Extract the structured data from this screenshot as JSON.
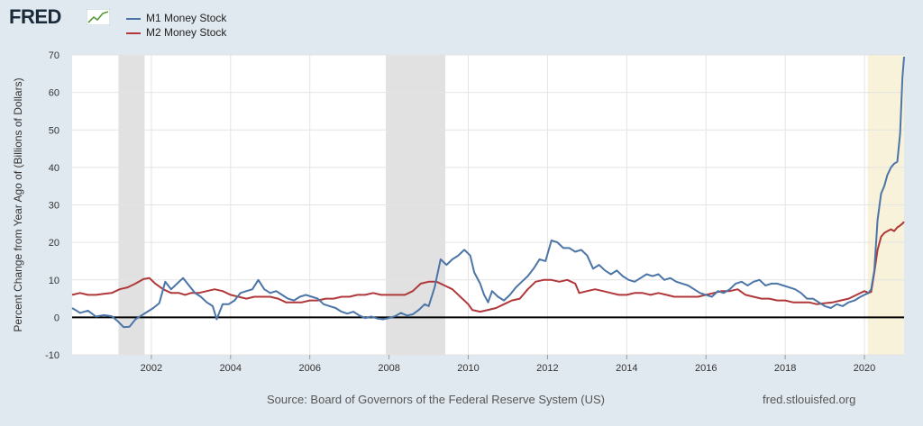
{
  "header": {
    "logo_text": "FRED",
    "logo_icon": "trend-chart-icon"
  },
  "colors": {
    "m1": "#4c75a7",
    "m2": "#b0383a",
    "recession": "#e1e1e1",
    "highlight": "#f7f2d9",
    "background": "#e1e9f0"
  },
  "footer": {
    "source": "Source: Board of Governors of the Federal Reserve System (US)",
    "url": "fred.stlouisfed.org"
  },
  "chart_data": {
    "type": "line",
    "ylabel": "Percent Change from Year Ago of (Billions of Dollars)",
    "xlim": [
      2000.0,
      2021.0
    ],
    "ylim": [
      -10,
      70
    ],
    "yticks": [
      -10,
      0,
      10,
      20,
      30,
      40,
      50,
      60,
      70
    ],
    "xticks": [
      2002,
      2004,
      2006,
      2008,
      2010,
      2012,
      2014,
      2016,
      2018,
      2020
    ],
    "grid": true,
    "legend": "top-left",
    "shaded_periods": [
      {
        "start": 2001.17,
        "end": 2001.83,
        "kind": "recession"
      },
      {
        "start": 2007.92,
        "end": 2009.42,
        "kind": "recession"
      },
      {
        "start": 2020.08,
        "end": 2021.0,
        "kind": "highlight"
      }
    ],
    "series": [
      {
        "name": "M1 Money Stock",
        "color": "#4c75a7",
        "points": [
          [
            2000.0,
            2.5
          ],
          [
            2000.2,
            1.2
          ],
          [
            2000.4,
            1.8
          ],
          [
            2000.6,
            0.2
          ],
          [
            2000.8,
            0.6
          ],
          [
            2001.0,
            0.3
          ],
          [
            2001.15,
            -1.0
          ],
          [
            2001.3,
            -2.6
          ],
          [
            2001.45,
            -2.5
          ],
          [
            2001.6,
            -0.5
          ],
          [
            2001.75,
            0.5
          ],
          [
            2001.9,
            1.5
          ],
          [
            2002.05,
            2.5
          ],
          [
            2002.2,
            3.8
          ],
          [
            2002.35,
            9.5
          ],
          [
            2002.5,
            7.5
          ],
          [
            2002.65,
            9.0
          ],
          [
            2002.8,
            10.5
          ],
          [
            2002.95,
            8.5
          ],
          [
            2003.1,
            6.5
          ],
          [
            2003.25,
            5.5
          ],
          [
            2003.4,
            4.0
          ],
          [
            2003.55,
            3.0
          ],
          [
            2003.65,
            -0.5
          ],
          [
            2003.8,
            3.5
          ],
          [
            2003.95,
            3.5
          ],
          [
            2004.1,
            4.5
          ],
          [
            2004.25,
            6.5
          ],
          [
            2004.4,
            7.0
          ],
          [
            2004.55,
            7.5
          ],
          [
            2004.7,
            10.0
          ],
          [
            2004.85,
            7.5
          ],
          [
            2005.0,
            6.5
          ],
          [
            2005.15,
            7.0
          ],
          [
            2005.3,
            6.0
          ],
          [
            2005.45,
            5.0
          ],
          [
            2005.6,
            4.5
          ],
          [
            2005.75,
            5.5
          ],
          [
            2005.9,
            6.0
          ],
          [
            2006.05,
            5.5
          ],
          [
            2006.2,
            5.0
          ],
          [
            2006.35,
            3.5
          ],
          [
            2006.5,
            3.0
          ],
          [
            2006.65,
            2.5
          ],
          [
            2006.8,
            1.5
          ],
          [
            2006.95,
            1.0
          ],
          [
            2007.1,
            1.5
          ],
          [
            2007.25,
            0.5
          ],
          [
            2007.4,
            -0.2
          ],
          [
            2007.55,
            0.2
          ],
          [
            2007.7,
            -0.3
          ],
          [
            2007.85,
            -0.5
          ],
          [
            2008.0,
            -0.2
          ],
          [
            2008.15,
            0.3
          ],
          [
            2008.3,
            1.2
          ],
          [
            2008.45,
            0.5
          ],
          [
            2008.6,
            0.8
          ],
          [
            2008.75,
            2.0
          ],
          [
            2008.9,
            3.5
          ],
          [
            2009.0,
            3.0
          ],
          [
            2009.15,
            8.0
          ],
          [
            2009.3,
            15.5
          ],
          [
            2009.45,
            14.0
          ],
          [
            2009.6,
            15.5
          ],
          [
            2009.75,
            16.5
          ],
          [
            2009.9,
            18.0
          ],
          [
            2010.05,
            16.5
          ],
          [
            2010.15,
            12.0
          ],
          [
            2010.3,
            9.0
          ],
          [
            2010.4,
            6.0
          ],
          [
            2010.5,
            4.0
          ],
          [
            2010.6,
            7.0
          ],
          [
            2010.75,
            5.5
          ],
          [
            2010.9,
            4.5
          ],
          [
            2011.05,
            6.0
          ],
          [
            2011.2,
            8.0
          ],
          [
            2011.35,
            9.5
          ],
          [
            2011.5,
            11.0
          ],
          [
            2011.65,
            13.0
          ],
          [
            2011.8,
            15.5
          ],
          [
            2011.95,
            15.0
          ],
          [
            2012.1,
            20.5
          ],
          [
            2012.25,
            20.0
          ],
          [
            2012.4,
            18.5
          ],
          [
            2012.55,
            18.5
          ],
          [
            2012.7,
            17.5
          ],
          [
            2012.85,
            18.0
          ],
          [
            2013.0,
            16.5
          ],
          [
            2013.15,
            13.0
          ],
          [
            2013.3,
            14.0
          ],
          [
            2013.45,
            12.5
          ],
          [
            2013.6,
            11.5
          ],
          [
            2013.75,
            12.5
          ],
          [
            2013.9,
            11.0
          ],
          [
            2014.05,
            10.0
          ],
          [
            2014.2,
            9.5
          ],
          [
            2014.35,
            10.5
          ],
          [
            2014.5,
            11.5
          ],
          [
            2014.65,
            11.0
          ],
          [
            2014.8,
            11.5
          ],
          [
            2014.95,
            10.0
          ],
          [
            2015.1,
            10.5
          ],
          [
            2015.25,
            9.5
          ],
          [
            2015.4,
            9.0
          ],
          [
            2015.55,
            8.5
          ],
          [
            2015.7,
            7.5
          ],
          [
            2015.85,
            6.5
          ],
          [
            2016.0,
            6.0
          ],
          [
            2016.15,
            5.5
          ],
          [
            2016.3,
            7.0
          ],
          [
            2016.45,
            6.5
          ],
          [
            2016.6,
            7.5
          ],
          [
            2016.75,
            9.0
          ],
          [
            2016.9,
            9.5
          ],
          [
            2017.05,
            8.5
          ],
          [
            2017.2,
            9.5
          ],
          [
            2017.35,
            10.0
          ],
          [
            2017.5,
            8.5
          ],
          [
            2017.65,
            9.0
          ],
          [
            2017.8,
            9.0
          ],
          [
            2017.95,
            8.5
          ],
          [
            2018.1,
            8.0
          ],
          [
            2018.25,
            7.5
          ],
          [
            2018.4,
            6.5
          ],
          [
            2018.55,
            5.0
          ],
          [
            2018.7,
            5.0
          ],
          [
            2018.85,
            4.0
          ],
          [
            2019.0,
            3.0
          ],
          [
            2019.15,
            2.5
          ],
          [
            2019.3,
            3.5
          ],
          [
            2019.45,
            3.0
          ],
          [
            2019.6,
            4.0
          ],
          [
            2019.75,
            4.5
          ],
          [
            2019.9,
            5.5
          ],
          [
            2020.0,
            6.0
          ],
          [
            2020.1,
            6.5
          ],
          [
            2020.17,
            7.5
          ],
          [
            2020.25,
            12.5
          ],
          [
            2020.33,
            26.0
          ],
          [
            2020.42,
            33.0
          ],
          [
            2020.5,
            35.0
          ],
          [
            2020.58,
            38.0
          ],
          [
            2020.67,
            40.0
          ],
          [
            2020.75,
            41.0
          ],
          [
            2020.83,
            41.5
          ],
          [
            2020.9,
            49.0
          ],
          [
            2020.96,
            64.0
          ],
          [
            2021.0,
            69.5
          ]
        ]
      },
      {
        "name": "M2 Money Stock",
        "color": "#b0383a",
        "points": [
          [
            2000.0,
            6.0
          ],
          [
            2000.2,
            6.5
          ],
          [
            2000.4,
            6.0
          ],
          [
            2000.6,
            6.0
          ],
          [
            2000.8,
            6.3
          ],
          [
            2001.0,
            6.5
          ],
          [
            2001.2,
            7.5
          ],
          [
            2001.4,
            8.0
          ],
          [
            2001.6,
            9.0
          ],
          [
            2001.8,
            10.2
          ],
          [
            2001.95,
            10.5
          ],
          [
            2002.1,
            9.0
          ],
          [
            2002.3,
            7.5
          ],
          [
            2002.5,
            6.5
          ],
          [
            2002.7,
            6.5
          ],
          [
            2002.85,
            6.0
          ],
          [
            2003.0,
            6.5
          ],
          [
            2003.2,
            6.5
          ],
          [
            2003.4,
            7.0
          ],
          [
            2003.6,
            7.5
          ],
          [
            2003.8,
            7.0
          ],
          [
            2004.0,
            6.0
          ],
          [
            2004.2,
            5.5
          ],
          [
            2004.4,
            5.0
          ],
          [
            2004.6,
            5.5
          ],
          [
            2004.8,
            5.5
          ],
          [
            2005.0,
            5.5
          ],
          [
            2005.2,
            5.0
          ],
          [
            2005.4,
            4.0
          ],
          [
            2005.6,
            4.0
          ],
          [
            2005.8,
            4.0
          ],
          [
            2006.0,
            4.5
          ],
          [
            2006.2,
            4.5
          ],
          [
            2006.4,
            5.0
          ],
          [
            2006.6,
            5.0
          ],
          [
            2006.8,
            5.5
          ],
          [
            2007.0,
            5.5
          ],
          [
            2007.2,
            6.0
          ],
          [
            2007.4,
            6.0
          ],
          [
            2007.6,
            6.5
          ],
          [
            2007.8,
            6.0
          ],
          [
            2008.0,
            6.0
          ],
          [
            2008.2,
            6.0
          ],
          [
            2008.4,
            6.0
          ],
          [
            2008.6,
            7.0
          ],
          [
            2008.8,
            9.0
          ],
          [
            2009.0,
            9.5
          ],
          [
            2009.2,
            9.5
          ],
          [
            2009.4,
            8.5
          ],
          [
            2009.6,
            7.5
          ],
          [
            2009.8,
            5.5
          ],
          [
            2010.0,
            3.5
          ],
          [
            2010.1,
            2.0
          ],
          [
            2010.3,
            1.5
          ],
          [
            2010.5,
            2.0
          ],
          [
            2010.7,
            2.5
          ],
          [
            2010.9,
            3.5
          ],
          [
            2011.1,
            4.5
          ],
          [
            2011.3,
            5.0
          ],
          [
            2011.5,
            7.5
          ],
          [
            2011.7,
            9.5
          ],
          [
            2011.9,
            10.0
          ],
          [
            2012.1,
            10.0
          ],
          [
            2012.3,
            9.5
          ],
          [
            2012.5,
            10.0
          ],
          [
            2012.7,
            9.0
          ],
          [
            2012.8,
            6.5
          ],
          [
            2013.0,
            7.0
          ],
          [
            2013.2,
            7.5
          ],
          [
            2013.4,
            7.0
          ],
          [
            2013.6,
            6.5
          ],
          [
            2013.8,
            6.0
          ],
          [
            2014.0,
            6.0
          ],
          [
            2014.2,
            6.5
          ],
          [
            2014.4,
            6.5
          ],
          [
            2014.6,
            6.0
          ],
          [
            2014.8,
            6.5
          ],
          [
            2015.0,
            6.0
          ],
          [
            2015.2,
            5.5
          ],
          [
            2015.4,
            5.5
          ],
          [
            2015.6,
            5.5
          ],
          [
            2015.8,
            5.5
          ],
          [
            2016.0,
            6.0
          ],
          [
            2016.2,
            6.5
          ],
          [
            2016.4,
            7.0
          ],
          [
            2016.6,
            7.0
          ],
          [
            2016.8,
            7.5
          ],
          [
            2017.0,
            6.0
          ],
          [
            2017.2,
            5.5
          ],
          [
            2017.4,
            5.0
          ],
          [
            2017.6,
            5.0
          ],
          [
            2017.8,
            4.5
          ],
          [
            2018.0,
            4.5
          ],
          [
            2018.2,
            4.0
          ],
          [
            2018.4,
            4.0
          ],
          [
            2018.6,
            4.0
          ],
          [
            2018.8,
            3.5
          ],
          [
            2019.0,
            3.8
          ],
          [
            2019.2,
            4.0
          ],
          [
            2019.4,
            4.5
          ],
          [
            2019.6,
            5.0
          ],
          [
            2019.8,
            6.0
          ],
          [
            2020.0,
            7.0
          ],
          [
            2020.1,
            6.5
          ],
          [
            2020.17,
            6.8
          ],
          [
            2020.25,
            12.0
          ],
          [
            2020.33,
            18.0
          ],
          [
            2020.42,
            21.5
          ],
          [
            2020.5,
            22.5
          ],
          [
            2020.58,
            23.0
          ],
          [
            2020.67,
            23.5
          ],
          [
            2020.75,
            23.0
          ],
          [
            2020.83,
            24.0
          ],
          [
            2020.9,
            24.5
          ],
          [
            2020.96,
            25.0
          ],
          [
            2021.0,
            25.5
          ]
        ]
      }
    ]
  }
}
